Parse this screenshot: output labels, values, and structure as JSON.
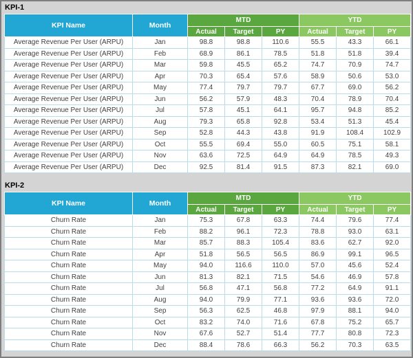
{
  "colors": {
    "canvas_bg": "#d4d4d4",
    "header_cyan": "#22a7d5",
    "mtd_green": "#5aa73f",
    "ytd_green": "#8bc862",
    "grid_line": "#b9dcea"
  },
  "tables": [
    {
      "title": "KPI-1",
      "kpi_header": "KPI Name",
      "month_header": "Month",
      "groups": [
        {
          "label": "MTD",
          "cols": [
            "Actual",
            "Target",
            "PY"
          ]
        },
        {
          "label": "YTD",
          "cols": [
            "Actual",
            "Target",
            "PY"
          ]
        }
      ],
      "rows": [
        {
          "kpi": "Average Revenue Per User (ARPU)",
          "month": "Jan",
          "values": [
            98.8,
            98.8,
            110.6,
            55.5,
            43.3,
            66.1
          ]
        },
        {
          "kpi": "Average Revenue Per User (ARPU)",
          "month": "Feb",
          "values": [
            68.9,
            86.1,
            78.5,
            51.8,
            51.8,
            39.4
          ]
        },
        {
          "kpi": "Average Revenue Per User (ARPU)",
          "month": "Mar",
          "values": [
            59.8,
            45.5,
            65.2,
            74.7,
            70.9,
            74.7
          ]
        },
        {
          "kpi": "Average Revenue Per User (ARPU)",
          "month": "Apr",
          "values": [
            70.3,
            65.4,
            57.6,
            58.9,
            50.6,
            53.0
          ]
        },
        {
          "kpi": "Average Revenue Per User (ARPU)",
          "month": "May",
          "values": [
            77.4,
            79.7,
            79.7,
            67.7,
            69.0,
            56.2
          ]
        },
        {
          "kpi": "Average Revenue Per User (ARPU)",
          "month": "Jun",
          "values": [
            56.2,
            57.9,
            48.3,
            70.4,
            78.9,
            70.4
          ]
        },
        {
          "kpi": "Average Revenue Per User (ARPU)",
          "month": "Jul",
          "values": [
            57.8,
            45.1,
            64.1,
            95.7,
            94.8,
            85.2
          ]
        },
        {
          "kpi": "Average Revenue Per User (ARPU)",
          "month": "Aug",
          "values": [
            79.3,
            65.8,
            92.8,
            53.4,
            51.3,
            45.4
          ]
        },
        {
          "kpi": "Average Revenue Per User (ARPU)",
          "month": "Sep",
          "values": [
            52.8,
            44.3,
            43.8,
            91.9,
            108.4,
            102.9
          ]
        },
        {
          "kpi": "Average Revenue Per User (ARPU)",
          "month": "Oct",
          "values": [
            55.5,
            69.4,
            55.0,
            60.5,
            75.1,
            58.1
          ]
        },
        {
          "kpi": "Average Revenue Per User (ARPU)",
          "month": "Nov",
          "values": [
            63.6,
            72.5,
            64.9,
            64.9,
            78.5,
            49.3
          ]
        },
        {
          "kpi": "Average Revenue Per User (ARPU)",
          "month": "Dec",
          "values": [
            92.5,
            81.4,
            91.5,
            87.3,
            82.1,
            69.0
          ]
        }
      ]
    },
    {
      "title": "KPI-2",
      "kpi_header": "KPI Name",
      "month_header": "Month",
      "groups": [
        {
          "label": "MTD",
          "cols": [
            "Actual",
            "Target",
            "PY"
          ]
        },
        {
          "label": "YTD",
          "cols": [
            "Actual",
            "Target",
            "PY"
          ]
        }
      ],
      "rows": [
        {
          "kpi": "Churn Rate",
          "month": "Jan",
          "values": [
            75.3,
            67.8,
            63.3,
            74.4,
            79.6,
            77.4
          ]
        },
        {
          "kpi": "Churn Rate",
          "month": "Feb",
          "values": [
            88.2,
            96.1,
            72.3,
            78.8,
            93.0,
            63.1
          ]
        },
        {
          "kpi": "Churn Rate",
          "month": "Mar",
          "values": [
            85.7,
            88.3,
            105.4,
            83.6,
            62.7,
            92.0
          ]
        },
        {
          "kpi": "Churn Rate",
          "month": "Apr",
          "values": [
            51.8,
            56.5,
            56.5,
            86.9,
            99.1,
            96.5
          ]
        },
        {
          "kpi": "Churn Rate",
          "month": "May",
          "values": [
            94.0,
            116.6,
            110.0,
            57.0,
            45.6,
            52.4
          ]
        },
        {
          "kpi": "Churn Rate",
          "month": "Jun",
          "values": [
            81.3,
            82.1,
            71.5,
            54.6,
            46.9,
            57.8
          ]
        },
        {
          "kpi": "Churn Rate",
          "month": "Jul",
          "values": [
            56.8,
            47.1,
            56.8,
            77.2,
            64.9,
            91.1
          ]
        },
        {
          "kpi": "Churn Rate",
          "month": "Aug",
          "values": [
            94.0,
            79.9,
            77.1,
            93.6,
            93.6,
            72.0
          ]
        },
        {
          "kpi": "Churn Rate",
          "month": "Sep",
          "values": [
            56.3,
            62.5,
            46.8,
            97.9,
            88.1,
            94.0
          ]
        },
        {
          "kpi": "Churn Rate",
          "month": "Oct",
          "values": [
            83.2,
            74.0,
            71.6,
            67.8,
            75.2,
            65.7
          ]
        },
        {
          "kpi": "Churn Rate",
          "month": "Nov",
          "values": [
            67.6,
            52.7,
            51.4,
            77.7,
            80.8,
            72.3
          ]
        },
        {
          "kpi": "Churn Rate",
          "month": "Dec",
          "values": [
            88.4,
            78.6,
            66.3,
            56.2,
            70.3,
            63.5
          ]
        }
      ]
    }
  ]
}
